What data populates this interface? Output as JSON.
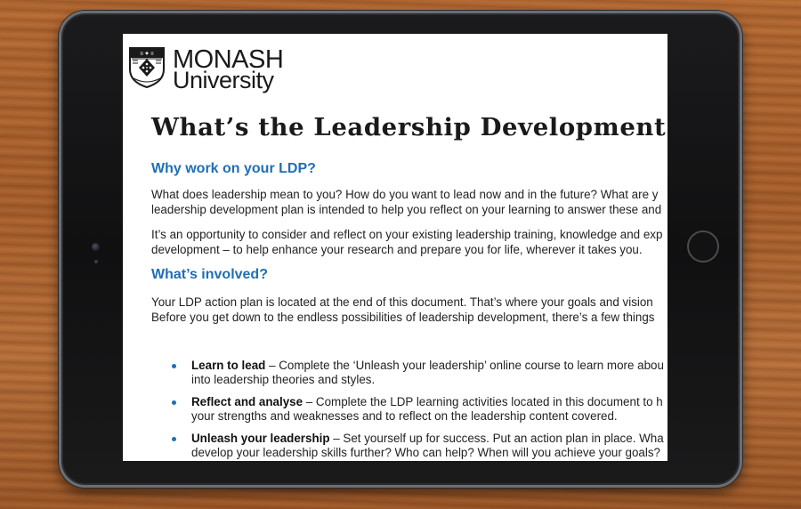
{
  "logo": {
    "line1": "MONASH",
    "line2": "University"
  },
  "document": {
    "title": "What’s the Leadership Development Plan",
    "section1": {
      "heading": "Why work on your LDP?",
      "para1": [
        "What does leadership mean to you? How do you want to lead now and in the future? What are y",
        "leadership development plan is intended to help you reflect on your learning to answer these and"
      ],
      "para2": [
        "It’s an opportunity to consider and reflect on your existing leadership training, knowledge and exp",
        "development – to help enhance your research and prepare you for life, wherever it takes you."
      ]
    },
    "section2": {
      "heading": "What’s involved?",
      "para1": [
        "Your LDP action plan is located at the end of this document. That’s where your goals and vision",
        "Before you get down to the endless possibilities of leadership development, there’s a few things"
      ]
    },
    "bullets": [
      {
        "bold": "Learn to lead",
        "line1": " – Complete the ‘Unleash your leadership’ online course to learn more abou",
        "line2": "into leadership theories and styles."
      },
      {
        "bold": "Reflect and analyse",
        "line1": " – Complete the LDP learning activities located in this document to h",
        "line2": "your strengths and weaknesses and to reflect on the leadership content covered."
      },
      {
        "bold": "Unleash your leadership",
        "line1": " – Set yourself up for success. Put an action plan in place. Wha",
        "line2": "develop your leadership skills further? Who can help? When will you achieve your goals?"
      }
    ]
  },
  "colors": {
    "heading_blue": "#1f6fb5",
    "body_text": "#222222",
    "bezel": "#121213",
    "wood": "#b06530"
  }
}
